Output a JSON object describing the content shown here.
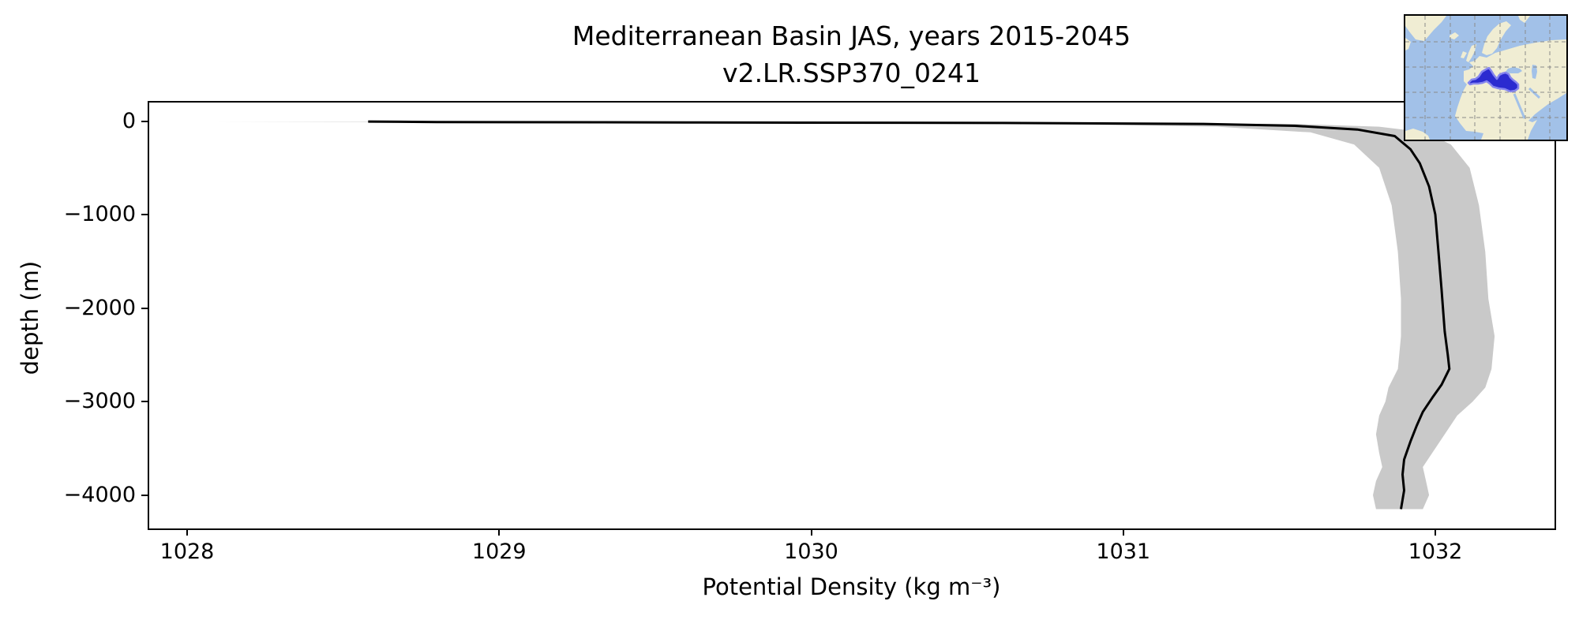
{
  "figure": {
    "title_line1": "Mediterranean Basin JAS, years 2015-2045",
    "title_line2": "v2.LR.SSP370_0241"
  },
  "chart_data": {
    "type": "line",
    "title": "Mediterranean Basin JAS, years 2015-2045",
    "subtitle": "v2.LR.SSP370_0241",
    "xlabel": "Potential Density (kg m⁻³)",
    "ylabel": "depth (m)",
    "xlim": [
      1027.876,
      1032.382
    ],
    "ylim": [
      -4357,
      207
    ],
    "grid": false,
    "legend_position": "none",
    "xticks": [
      1028,
      1029,
      1030,
      1031,
      1032
    ],
    "xtick_labels": [
      "1028",
      "1029",
      "1030",
      "1031",
      "1032"
    ],
    "yticks": [
      0,
      -1000,
      -2000,
      -3000,
      -4000
    ],
    "ytick_labels": [
      "0",
      "−1000",
      "−2000",
      "−3000",
      "−4000"
    ],
    "series": [
      {
        "name": "mean potential density profile",
        "color": "#000000",
        "line_width": 3,
        "points": [
          [
            1028.58,
            -5
          ],
          [
            1028.8,
            -10
          ],
          [
            1029.6,
            -14
          ],
          [
            1030.6,
            -20
          ],
          [
            1031.25,
            -30
          ],
          [
            1031.55,
            -50
          ],
          [
            1031.75,
            -90
          ],
          [
            1031.87,
            -160
          ],
          [
            1031.92,
            -300
          ],
          [
            1031.95,
            -450
          ],
          [
            1031.98,
            -700
          ],
          [
            1032.0,
            -1000
          ],
          [
            1032.01,
            -1400
          ],
          [
            1032.02,
            -1800
          ],
          [
            1032.03,
            -2250
          ],
          [
            1032.04,
            -2500
          ],
          [
            1032.045,
            -2650
          ],
          [
            1032.02,
            -2820
          ],
          [
            1031.99,
            -2960
          ],
          [
            1031.96,
            -3110
          ],
          [
            1031.94,
            -3260
          ],
          [
            1031.92,
            -3430
          ],
          [
            1031.9,
            -3620
          ],
          [
            1031.895,
            -3780
          ],
          [
            1031.9,
            -3950
          ],
          [
            1031.89,
            -4150
          ]
        ]
      }
    ],
    "band": {
      "name": "spread envelope (min-max / ±std)",
      "color": "#c9c9c9",
      "levels": [
        [
          -5,
          1028.09,
          1028.7
        ],
        [
          -30,
          1030.75,
          1031.55
        ],
        [
          -60,
          1031.3,
          1031.82
        ],
        [
          -120,
          1031.6,
          1031.97
        ],
        [
          -250,
          1031.74,
          1032.05
        ],
        [
          -500,
          1031.82,
          1032.11
        ],
        [
          -900,
          1031.86,
          1032.14
        ],
        [
          -1400,
          1031.88,
          1032.16
        ],
        [
          -1900,
          1031.89,
          1032.17
        ],
        [
          -2300,
          1031.89,
          1032.19
        ],
        [
          -2650,
          1031.88,
          1032.18
        ],
        [
          -2850,
          1031.85,
          1032.16
        ],
        [
          -3000,
          1031.84,
          1032.12
        ],
        [
          -3150,
          1031.82,
          1032.07
        ],
        [
          -3350,
          1031.81,
          1032.03
        ],
        [
          -3550,
          1031.82,
          1031.99
        ],
        [
          -3700,
          1031.83,
          1031.96
        ],
        [
          -3850,
          1031.81,
          1031.97
        ],
        [
          -4000,
          1031.8,
          1031.98
        ],
        [
          -4150,
          1031.81,
          1031.96
        ]
      ]
    }
  },
  "inset_map": {
    "name": "Mediterranean Basin locator map",
    "ocean_color": "#a2c1e8",
    "land_color": "#f0edd3",
    "highlight_fill": "#2b2bd0",
    "highlight_stroke": "#8585ee",
    "grid_color": "#8a8a8a",
    "border_color": "#000000"
  }
}
